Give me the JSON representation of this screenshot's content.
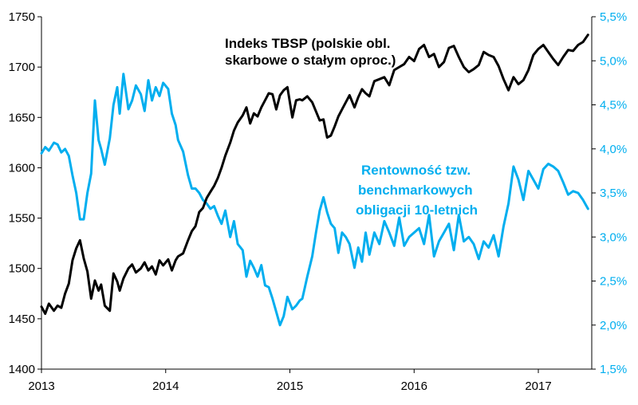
{
  "chart_data": {
    "type": "line",
    "x_ticks": [
      "2013",
      "2014",
      "2015",
      "2016",
      "2017"
    ],
    "y_left": {
      "ticks": [
        "1400",
        "1450",
        "1500",
        "1550",
        "1600",
        "1650",
        "1700",
        "1750"
      ],
      "range": [
        1400,
        1750
      ]
    },
    "y_right": {
      "ticks": [
        "1,5%",
        "2,0%",
        "2,5%",
        "3,0%",
        "3,5%",
        "4,0%",
        "4,5%",
        "5,0%",
        "5,5%"
      ],
      "range": [
        1.5,
        5.5
      ]
    },
    "series": [
      {
        "name": "Indeks TBSP (polskie obl. skarbowe o stałym oproc.)",
        "label_lines": [
          "Indeks TBSP (polskie obl.",
          "skarbowe o stałym oproc.)"
        ],
        "axis": "left",
        "color": "#000000",
        "x": [
          2013.0,
          2013.03,
          2013.06,
          2013.1,
          2013.13,
          2013.16,
          2013.19,
          2013.22,
          2013.25,
          2013.28,
          2013.31,
          2013.34,
          2013.37,
          2013.4,
          2013.43,
          2013.46,
          2013.48,
          2013.51,
          2013.55,
          2013.58,
          2013.61,
          2013.63,
          2013.66,
          2013.7,
          2013.73,
          2013.76,
          2013.8,
          2013.83,
          2013.86,
          2013.89,
          2013.92,
          2013.95,
          2013.98,
          2014.02,
          2014.05,
          2014.08,
          2014.1,
          2014.14,
          2014.18,
          2014.21,
          2014.24,
          2014.27,
          2014.3,
          2014.33,
          2014.36,
          2014.39,
          2014.42,
          2014.45,
          2014.48,
          2014.52,
          2014.55,
          2014.58,
          2014.62,
          2014.65,
          2014.68,
          2014.71,
          2014.74,
          2014.77,
          2014.8,
          2014.83,
          2014.86,
          2014.89,
          2014.92,
          2014.95,
          2014.98,
          2015.02,
          2015.05,
          2015.08,
          2015.1,
          2015.14,
          2015.18,
          2015.21,
          2015.24,
          2015.27,
          2015.3,
          2015.33,
          2015.36,
          2015.39,
          2015.42,
          2015.45,
          2015.48,
          2015.52,
          2015.55,
          2015.58,
          2015.61,
          2015.64,
          2015.68,
          2015.72,
          2015.76,
          2015.8,
          2015.84,
          2015.88,
          2015.92,
          2015.96,
          2016.0,
          2016.04,
          2016.08,
          2016.12,
          2016.16,
          2016.2,
          2016.24,
          2016.28,
          2016.32,
          2016.36,
          2016.4,
          2016.44,
          2016.48,
          2016.52,
          2016.56,
          2016.6,
          2016.64,
          2016.68,
          2016.72,
          2016.76,
          2016.8,
          2016.84,
          2016.88,
          2016.92,
          2016.96,
          2017.0,
          2017.04,
          2017.08,
          2017.12,
          2017.16,
          2017.2,
          2017.24,
          2017.28,
          2017.32,
          2017.36,
          2017.4
        ],
        "values": [
          1462,
          1455,
          1465,
          1458,
          1463,
          1461,
          1475,
          1485,
          1508,
          1520,
          1528,
          1510,
          1497,
          1470,
          1488,
          1478,
          1484,
          1463,
          1458,
          1495,
          1487,
          1478,
          1490,
          1500,
          1504,
          1496,
          1500,
          1506,
          1498,
          1502,
          1494,
          1508,
          1503,
          1509,
          1498,
          1508,
          1512,
          1515,
          1528,
          1537,
          1542,
          1556,
          1560,
          1570,
          1576,
          1582,
          1590,
          1600,
          1612,
          1625,
          1637,
          1645,
          1652,
          1660,
          1644,
          1654,
          1651,
          1660,
          1667,
          1674,
          1673,
          1658,
          1672,
          1677,
          1680,
          1650,
          1667,
          1668,
          1667,
          1671,
          1665,
          1656,
          1647,
          1648,
          1630,
          1632,
          1641,
          1651,
          1658,
          1665,
          1672,
          1660,
          1670,
          1678,
          1674,
          1671,
          1686,
          1688,
          1690,
          1682,
          1697,
          1700,
          1703,
          1710,
          1706,
          1718,
          1722,
          1710,
          1713,
          1700,
          1705,
          1719,
          1721,
          1710,
          1700,
          1695,
          1698,
          1702,
          1715,
          1712,
          1710,
          1701,
          1688,
          1677,
          1690,
          1683,
          1687,
          1697,
          1712,
          1718,
          1722,
          1715,
          1708,
          1702,
          1710,
          1717,
          1716,
          1722,
          1725,
          1732
        ]
      },
      {
        "name": "Rentowność tzw. benchmarkowych obligacji 10-letnich",
        "label_lines": [
          "Rentowność tzw.",
          "benchmarkowych",
          "obligacji 10-letnich"
        ],
        "axis": "right",
        "color": "#00aeef",
        "x": [
          2013.0,
          2013.03,
          2013.06,
          2013.1,
          2013.13,
          2013.16,
          2013.19,
          2013.22,
          2013.25,
          2013.28,
          2013.31,
          2013.34,
          2013.37,
          2013.4,
          2013.43,
          2013.46,
          2013.48,
          2013.51,
          2013.55,
          2013.58,
          2013.61,
          2013.63,
          2013.66,
          2013.7,
          2013.73,
          2013.76,
          2013.8,
          2013.83,
          2013.86,
          2013.89,
          2013.92,
          2013.95,
          2013.98,
          2014.02,
          2014.05,
          2014.08,
          2014.1,
          2014.14,
          2014.18,
          2014.21,
          2014.24,
          2014.27,
          2014.3,
          2014.33,
          2014.36,
          2014.39,
          2014.42,
          2014.45,
          2014.48,
          2014.52,
          2014.55,
          2014.58,
          2014.62,
          2014.65,
          2014.68,
          2014.71,
          2014.74,
          2014.77,
          2014.8,
          2014.83,
          2014.86,
          2014.89,
          2014.92,
          2014.95,
          2014.98,
          2015.02,
          2015.05,
          2015.08,
          2015.1,
          2015.14,
          2015.18,
          2015.21,
          2015.24,
          2015.27,
          2015.3,
          2015.33,
          2015.36,
          2015.39,
          2015.42,
          2015.45,
          2015.48,
          2015.52,
          2015.55,
          2015.58,
          2015.61,
          2015.64,
          2015.68,
          2015.72,
          2015.76,
          2015.8,
          2015.84,
          2015.88,
          2015.92,
          2015.96,
          2016.0,
          2016.04,
          2016.08,
          2016.12,
          2016.16,
          2016.2,
          2016.24,
          2016.28,
          2016.32,
          2016.36,
          2016.4,
          2016.44,
          2016.48,
          2016.52,
          2016.56,
          2016.6,
          2016.64,
          2016.68,
          2016.72,
          2016.76,
          2016.8,
          2016.84,
          2016.88,
          2016.92,
          2016.96,
          2017.0,
          2017.04,
          2017.08,
          2017.12,
          2017.16,
          2017.2,
          2017.24,
          2017.28,
          2017.32,
          2017.36,
          2017.4
        ],
        "values": [
          3.95,
          4.02,
          3.98,
          4.07,
          4.05,
          3.96,
          4.0,
          3.92,
          3.7,
          3.5,
          3.2,
          3.2,
          3.5,
          3.72,
          4.55,
          4.1,
          4.0,
          3.82,
          4.12,
          4.5,
          4.7,
          4.4,
          4.85,
          4.45,
          4.55,
          4.72,
          4.62,
          4.43,
          4.78,
          4.55,
          4.7,
          4.6,
          4.75,
          4.68,
          4.4,
          4.27,
          4.1,
          3.97,
          3.7,
          3.55,
          3.55,
          3.5,
          3.42,
          3.38,
          3.32,
          3.35,
          3.24,
          3.15,
          3.3,
          3.0,
          3.18,
          2.92,
          2.85,
          2.55,
          2.73,
          2.65,
          2.55,
          2.68,
          2.45,
          2.43,
          2.3,
          2.15,
          2.0,
          2.1,
          2.32,
          2.18,
          2.22,
          2.28,
          2.3,
          2.55,
          2.78,
          3.05,
          3.3,
          3.45,
          3.28,
          3.15,
          3.1,
          2.82,
          3.05,
          3.0,
          2.92,
          2.65,
          2.88,
          2.72,
          3.05,
          2.8,
          3.05,
          2.92,
          3.18,
          3.05,
          2.9,
          3.22,
          2.9,
          3.0,
          3.05,
          3.1,
          2.92,
          3.25,
          2.78,
          2.95,
          3.05,
          3.15,
          2.85,
          3.25,
          2.95,
          3.0,
          2.92,
          2.75,
          2.95,
          2.88,
          3.02,
          2.78,
          3.12,
          3.38,
          3.8,
          3.65,
          3.42,
          3.75,
          3.65,
          3.55,
          3.77,
          3.83,
          3.8,
          3.75,
          3.62,
          3.48,
          3.52,
          3.5,
          3.42,
          3.32
        ]
      }
    ]
  }
}
